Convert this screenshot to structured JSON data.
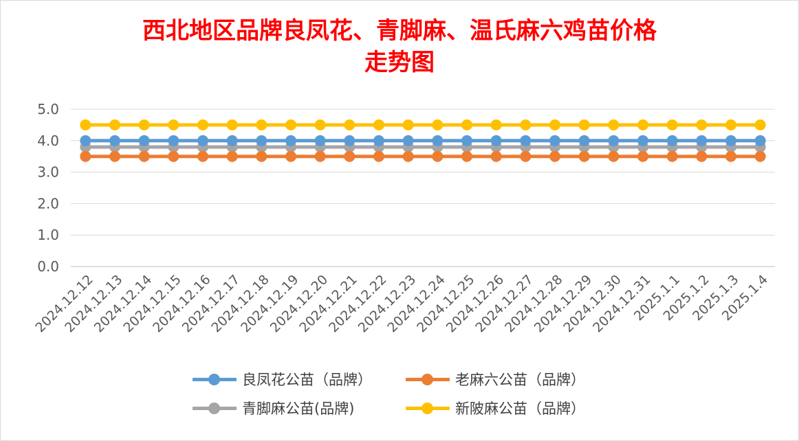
{
  "chart_data": {
    "type": "line",
    "title": "西北地区品牌良凤花、青脚麻、温氏麻六鸡苗价格",
    "title_line2": "走势图",
    "title_color": "#ff0000",
    "xlabel": "",
    "ylabel": "",
    "ylim": [
      0,
      5
    ],
    "yticks": [
      "0.0",
      "1.0",
      "2.0",
      "3.0",
      "4.0",
      "5.0"
    ],
    "grid": true,
    "legend_position": "bottom",
    "categories": [
      "2024.12.12",
      "2024.12.13",
      "2024.12.14",
      "2024.12.15",
      "2024.12.16",
      "2024.12.17",
      "2024.12.18",
      "2024.12.19",
      "2024.12.20",
      "2024.12.21",
      "2024.12.22",
      "2024.12.23",
      "2024.12.24",
      "2024.12.25",
      "2024.12.26",
      "2024.12.27",
      "2024.12.28",
      "2024.12.29",
      "2024.12.30",
      "2024.12.31",
      "2025.1.1",
      "2025.1.2",
      "2025.1.3",
      "2025.1.4"
    ],
    "series": [
      {
        "name": "良凤花公苗（品牌）",
        "color": "#5b9bd5",
        "values": [
          4.0,
          4.0,
          4.0,
          4.0,
          4.0,
          4.0,
          4.0,
          4.0,
          4.0,
          4.0,
          4.0,
          4.0,
          4.0,
          4.0,
          4.0,
          4.0,
          4.0,
          4.0,
          4.0,
          4.0,
          4.0,
          4.0,
          4.0,
          4.0
        ]
      },
      {
        "name": "老麻六公苗（品牌）",
        "color": "#ed7d31",
        "values": [
          3.5,
          3.5,
          3.5,
          3.5,
          3.5,
          3.5,
          3.5,
          3.5,
          3.5,
          3.5,
          3.5,
          3.5,
          3.5,
          3.5,
          3.5,
          3.5,
          3.5,
          3.5,
          3.5,
          3.5,
          3.5,
          3.5,
          3.5,
          3.5
        ]
      },
      {
        "name": "青脚麻公苗(品牌)",
        "color": "#a5a5a5",
        "values": [
          3.8,
          3.8,
          3.8,
          3.8,
          3.8,
          3.8,
          3.8,
          3.8,
          3.8,
          3.8,
          3.8,
          3.8,
          3.8,
          3.8,
          3.8,
          3.8,
          3.8,
          3.8,
          3.8,
          3.8,
          3.8,
          3.8,
          3.8,
          3.8
        ]
      },
      {
        "name": "新陂麻公苗（品牌）",
        "color": "#ffc000",
        "values": [
          4.5,
          4.5,
          4.5,
          4.5,
          4.5,
          4.5,
          4.5,
          4.5,
          4.5,
          4.5,
          4.5,
          4.5,
          4.5,
          4.5,
          4.5,
          4.5,
          4.5,
          4.5,
          4.5,
          4.5,
          4.5,
          4.5,
          4.5,
          4.5
        ]
      }
    ],
    "draw_order": [
      2,
      1,
      0,
      3
    ]
  }
}
